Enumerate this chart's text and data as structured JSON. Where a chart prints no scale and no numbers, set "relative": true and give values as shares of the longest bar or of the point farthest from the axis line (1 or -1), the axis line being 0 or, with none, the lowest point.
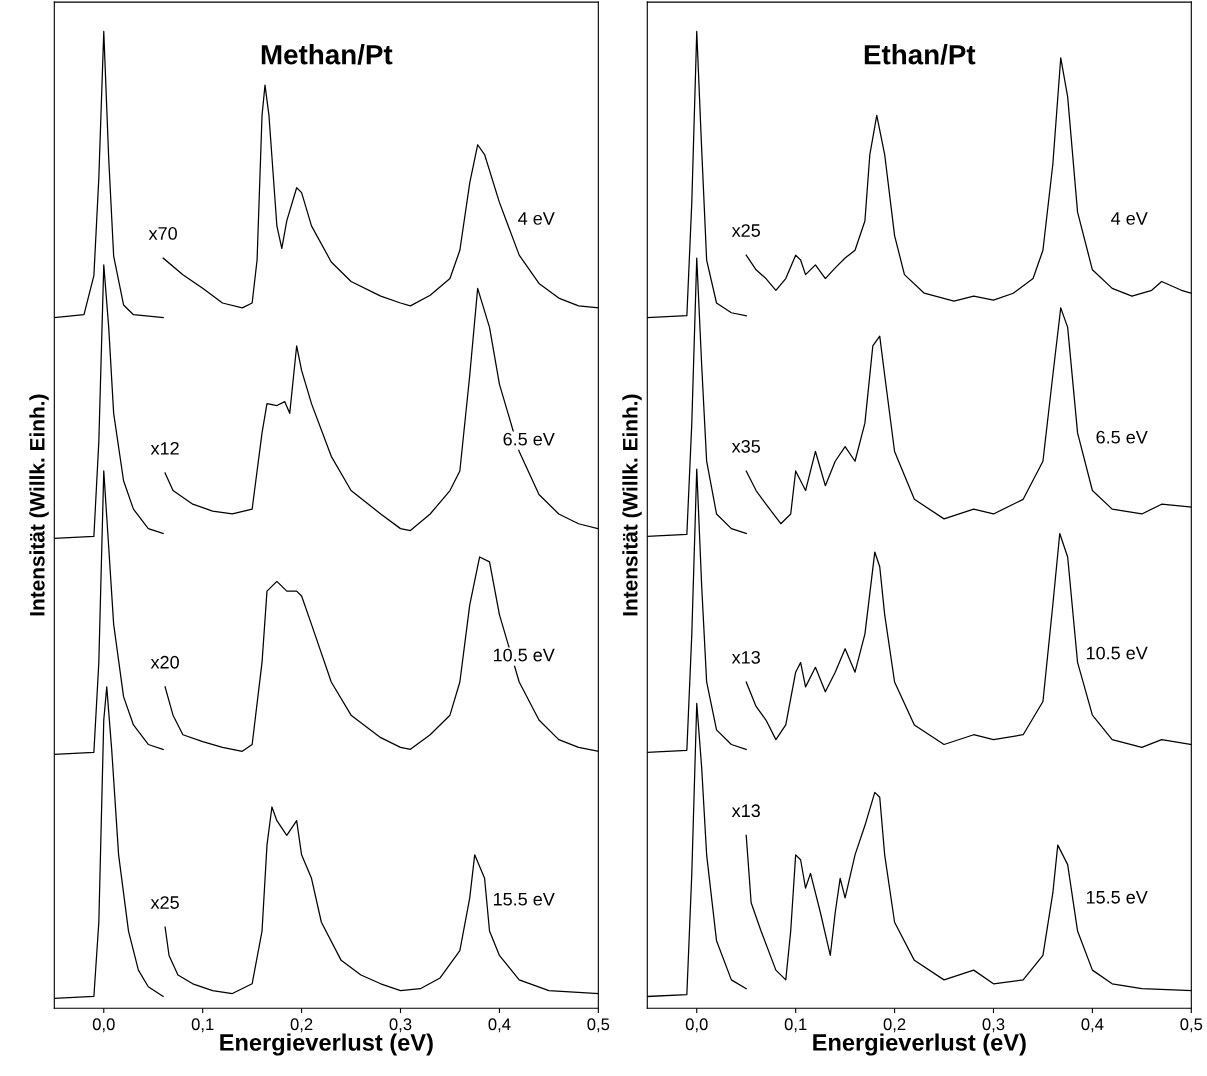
{
  "chart_data": [
    {
      "type": "line",
      "title": "Methan/Pt",
      "xlabel": "Energieverlust (eV)",
      "ylabel": "Intensität (Willk. Einh.)",
      "relative": true,
      "legend": false,
      "grid": false,
      "tick_labels": "x",
      "xlim": [
        -0.05,
        0.5
      ],
      "xticks": [
        {
          "value": 0,
          "label": "0,0"
        },
        {
          "value": 0.1,
          "label": "0,1"
        },
        {
          "value": 0.2,
          "label": "0,2"
        },
        {
          "value": 0.3,
          "label": "0,3"
        },
        {
          "value": 0.4,
          "label": "0,4"
        },
        {
          "value": 0.5,
          "label": "0,5"
        }
      ],
      "annotations": [
        "x70",
        "4 eV",
        "x12",
        "6.5 eV",
        "x20",
        "10.5 eV",
        "x25",
        "15.5 eV"
      ],
      "series": [
        {
          "color": "#000000",
          "x": [
            -0.05,
            -0.02,
            -0.01,
            -0.005,
            0,
            0.005,
            0.01,
            0.02,
            0.03,
            0.06
          ],
          "values": [
            0.707,
            0.71,
            0.75,
            0.85,
            1.0,
            0.87,
            0.77,
            0.72,
            0.71,
            0.707
          ]
        },
        {
          "color": "#000000",
          "x": [
            0.06,
            0.08,
            0.1,
            0.12,
            0.14,
            0.15,
            0.155,
            0.16,
            0.163,
            0.167,
            0.175,
            0.18,
            0.185,
            0.195,
            0.2,
            0.21,
            0.23,
            0.25,
            0.28,
            0.3,
            0.31,
            0.33,
            0.35,
            0.36,
            0.37,
            0.378,
            0.385,
            0.4,
            0.42,
            0.44,
            0.46,
            0.48,
            0.5
          ],
          "values": [
            0.768,
            0.751,
            0.737,
            0.722,
            0.717,
            0.722,
            0.766,
            0.914,
            0.945,
            0.914,
            0.801,
            0.778,
            0.806,
            0.84,
            0.835,
            0.801,
            0.764,
            0.744,
            0.729,
            0.722,
            0.719,
            0.73,
            0.747,
            0.776,
            0.845,
            0.884,
            0.874,
            0.825,
            0.771,
            0.742,
            0.727,
            0.719,
            0.717
          ]
        },
        {
          "color": "#000000",
          "x": [
            -0.05,
            -0.01,
            -0.005,
            0,
            0.005,
            0.01,
            0.02,
            0.03,
            0.045,
            0.06
          ],
          "values": [
            0.481,
            0.483,
            0.58,
            0.761,
            0.697,
            0.609,
            0.54,
            0.511,
            0.491,
            0.486
          ]
        },
        {
          "color": "#000000",
          "x": [
            0.062,
            0.07,
            0.09,
            0.11,
            0.13,
            0.15,
            0.16,
            0.165,
            0.175,
            0.183,
            0.188,
            0.195,
            0.2,
            0.21,
            0.23,
            0.25,
            0.28,
            0.3,
            0.31,
            0.33,
            0.35,
            0.36,
            0.37,
            0.378,
            0.39,
            0.4,
            0.42,
            0.44,
            0.46,
            0.48,
            0.5
          ],
          "values": [
            0.548,
            0.53,
            0.516,
            0.509,
            0.506,
            0.511,
            0.589,
            0.619,
            0.617,
            0.621,
            0.609,
            0.678,
            0.653,
            0.619,
            0.565,
            0.53,
            0.506,
            0.491,
            0.489,
            0.506,
            0.53,
            0.55,
            0.648,
            0.737,
            0.697,
            0.639,
            0.57,
            0.526,
            0.506,
            0.496,
            0.491
          ]
        },
        {
          "color": "#000000",
          "x": [
            -0.05,
            -0.01,
            -0.005,
            0,
            0.005,
            0.01,
            0.02,
            0.03,
            0.045,
            0.06
          ],
          "values": [
            0.26,
            0.262,
            0.354,
            0.55,
            0.472,
            0.393,
            0.319,
            0.29,
            0.27,
            0.265
          ]
        },
        {
          "color": "#000000",
          "x": [
            0.062,
            0.07,
            0.08,
            0.1,
            0.12,
            0.14,
            0.15,
            0.16,
            0.165,
            0.175,
            0.185,
            0.195,
            0.2,
            0.21,
            0.23,
            0.25,
            0.28,
            0.3,
            0.31,
            0.33,
            0.35,
            0.36,
            0.37,
            0.38,
            0.39,
            0.4,
            0.42,
            0.44,
            0.46,
            0.48,
            0.5
          ],
          "values": [
            0.329,
            0.3,
            0.28,
            0.273,
            0.267,
            0.263,
            0.27,
            0.354,
            0.427,
            0.437,
            0.427,
            0.427,
            0.422,
            0.393,
            0.334,
            0.3,
            0.277,
            0.267,
            0.265,
            0.28,
            0.3,
            0.334,
            0.413,
            0.462,
            0.457,
            0.403,
            0.334,
            0.295,
            0.275,
            0.267,
            0.263
          ]
        },
        {
          "color": "#000000",
          "x": [
            -0.05,
            -0.01,
            -0.005,
            0,
            0.003,
            0.008,
            0.015,
            0.025,
            0.035,
            0.045,
            0.06
          ],
          "values": [
            0.01,
            0.012,
            0.088,
            0.295,
            0.329,
            0.265,
            0.157,
            0.079,
            0.039,
            0.022,
            0.012
          ]
        },
        {
          "color": "#000000",
          "x": [
            0.062,
            0.066,
            0.075,
            0.09,
            0.11,
            0.13,
            0.15,
            0.16,
            0.165,
            0.17,
            0.175,
            0.185,
            0.195,
            0.2,
            0.21,
            0.22,
            0.24,
            0.26,
            0.28,
            0.3,
            0.32,
            0.34,
            0.36,
            0.37,
            0.375,
            0.385,
            0.39,
            0.4,
            0.42,
            0.45,
            0.5
          ],
          "values": [
            0.083,
            0.054,
            0.034,
            0.025,
            0.018,
            0.015,
            0.025,
            0.079,
            0.167,
            0.206,
            0.192,
            0.177,
            0.192,
            0.157,
            0.133,
            0.088,
            0.049,
            0.034,
            0.025,
            0.018,
            0.02,
            0.031,
            0.059,
            0.113,
            0.157,
            0.133,
            0.079,
            0.054,
            0.029,
            0.018,
            0.015
          ]
        }
      ]
    },
    {
      "type": "line",
      "title": "Ethan/Pt",
      "xlabel": "Energieverlust (eV)",
      "ylabel": "Intensität (Willk. Einh.)",
      "relative": true,
      "legend": false,
      "grid": false,
      "tick_labels": "x",
      "xlim": [
        -0.05,
        0.5
      ],
      "xticks": [
        {
          "value": 0,
          "label": "0,0"
        },
        {
          "value": 0.1,
          "label": "0,1"
        },
        {
          "value": 0.2,
          "label": "0,2"
        },
        {
          "value": 0.3,
          "label": "0,3"
        },
        {
          "value": 0.4,
          "label": "0,4"
        },
        {
          "value": 0.5,
          "label": "0,5"
        }
      ],
      "annotations": [
        "x25",
        "4 eV",
        "x35",
        "6.5 eV",
        "x13",
        "10.5 eV",
        "x13",
        "15.5 eV"
      ],
      "series": [
        {
          "color": "#000000",
          "x": [
            -0.05,
            -0.01,
            -0.005,
            0,
            0.005,
            0.01,
            0.02,
            0.035,
            0.05
          ],
          "values": [
            0.707,
            0.709,
            0.825,
            1.0,
            0.879,
            0.766,
            0.722,
            0.712,
            0.709
          ]
        },
        {
          "color": "#000000",
          "x": [
            0.05,
            0.06,
            0.07,
            0.08,
            0.09,
            0.1,
            0.105,
            0.11,
            0.12,
            0.13,
            0.14,
            0.15,
            0.16,
            0.17,
            0.175,
            0.182,
            0.19,
            0.2,
            0.21,
            0.23,
            0.26,
            0.28,
            0.3,
            0.32,
            0.34,
            0.35,
            0.36,
            0.368,
            0.375,
            0.385,
            0.4,
            0.42,
            0.44,
            0.46,
            0.47,
            0.49,
            0.5
          ],
          "values": [
            0.771,
            0.756,
            0.747,
            0.735,
            0.747,
            0.771,
            0.766,
            0.751,
            0.761,
            0.747,
            0.758,
            0.768,
            0.776,
            0.806,
            0.874,
            0.914,
            0.874,
            0.791,
            0.751,
            0.732,
            0.724,
            0.729,
            0.725,
            0.732,
            0.747,
            0.776,
            0.864,
            0.973,
            0.933,
            0.815,
            0.756,
            0.737,
            0.729,
            0.735,
            0.744,
            0.735,
            0.732
          ]
        },
        {
          "color": "#000000",
          "x": [
            -0.05,
            -0.01,
            -0.005,
            0,
            0.005,
            0.01,
            0.02,
            0.035,
            0.05
          ],
          "values": [
            0.483,
            0.485,
            0.599,
            0.768,
            0.658,
            0.56,
            0.506,
            0.491,
            0.486
          ]
        },
        {
          "color": "#000000",
          "x": [
            0.05,
            0.06,
            0.07,
            0.085,
            0.095,
            0.1,
            0.11,
            0.12,
            0.13,
            0.14,
            0.15,
            0.16,
            0.17,
            0.178,
            0.185,
            0.19,
            0.2,
            0.22,
            0.25,
            0.28,
            0.3,
            0.33,
            0.35,
            0.36,
            0.368,
            0.375,
            0.385,
            0.4,
            0.42,
            0.45,
            0.47,
            0.5
          ],
          "values": [
            0.55,
            0.53,
            0.516,
            0.496,
            0.506,
            0.55,
            0.53,
            0.57,
            0.535,
            0.56,
            0.575,
            0.56,
            0.599,
            0.678,
            0.688,
            0.648,
            0.57,
            0.521,
            0.501,
            0.511,
            0.506,
            0.521,
            0.56,
            0.648,
            0.717,
            0.697,
            0.589,
            0.53,
            0.511,
            0.506,
            0.516,
            0.513
          ]
        },
        {
          "color": "#000000",
          "x": [
            -0.05,
            -0.01,
            -0.005,
            0,
            0.005,
            0.01,
            0.02,
            0.035,
            0.05
          ],
          "values": [
            0.262,
            0.264,
            0.383,
            0.552,
            0.432,
            0.334,
            0.285,
            0.27,
            0.265
          ]
        },
        {
          "color": "#000000",
          "x": [
            0.05,
            0.06,
            0.07,
            0.08,
            0.09,
            0.1,
            0.105,
            0.11,
            0.12,
            0.13,
            0.14,
            0.15,
            0.16,
            0.17,
            0.18,
            0.185,
            0.19,
            0.2,
            0.22,
            0.25,
            0.28,
            0.3,
            0.33,
            0.35,
            0.36,
            0.367,
            0.375,
            0.385,
            0.4,
            0.42,
            0.45,
            0.47,
            0.5
          ],
          "values": [
            0.334,
            0.309,
            0.295,
            0.275,
            0.29,
            0.344,
            0.354,
            0.329,
            0.349,
            0.324,
            0.344,
            0.368,
            0.344,
            0.383,
            0.467,
            0.452,
            0.403,
            0.334,
            0.29,
            0.27,
            0.28,
            0.275,
            0.28,
            0.314,
            0.413,
            0.486,
            0.462,
            0.354,
            0.3,
            0.275,
            0.267,
            0.275,
            0.27
          ]
        },
        {
          "color": "#000000",
          "x": [
            -0.05,
            -0.01,
            -0.005,
            0,
            0.005,
            0.01,
            0.02,
            0.035,
            0.05
          ],
          "values": [
            0.012,
            0.014,
            0.138,
            0.312,
            0.246,
            0.157,
            0.069,
            0.029,
            0.02
          ]
        },
        {
          "color": "#000000",
          "x": [
            0.05,
            0.055,
            0.065,
            0.08,
            0.09,
            0.095,
            0.1,
            0.105,
            0.11,
            0.115,
            0.125,
            0.135,
            0.14,
            0.145,
            0.15,
            0.16,
            0.17,
            0.18,
            0.185,
            0.19,
            0.2,
            0.22,
            0.25,
            0.28,
            0.3,
            0.33,
            0.35,
            0.36,
            0.365,
            0.375,
            0.385,
            0.4,
            0.42,
            0.45,
            0.5
          ],
          "values": [
            0.177,
            0.108,
            0.079,
            0.039,
            0.029,
            0.079,
            0.157,
            0.152,
            0.123,
            0.138,
            0.098,
            0.054,
            0.098,
            0.133,
            0.113,
            0.157,
            0.187,
            0.221,
            0.216,
            0.157,
            0.088,
            0.049,
            0.029,
            0.039,
            0.025,
            0.029,
            0.054,
            0.118,
            0.167,
            0.147,
            0.079,
            0.039,
            0.025,
            0.02,
            0.018
          ]
        }
      ]
    }
  ]
}
